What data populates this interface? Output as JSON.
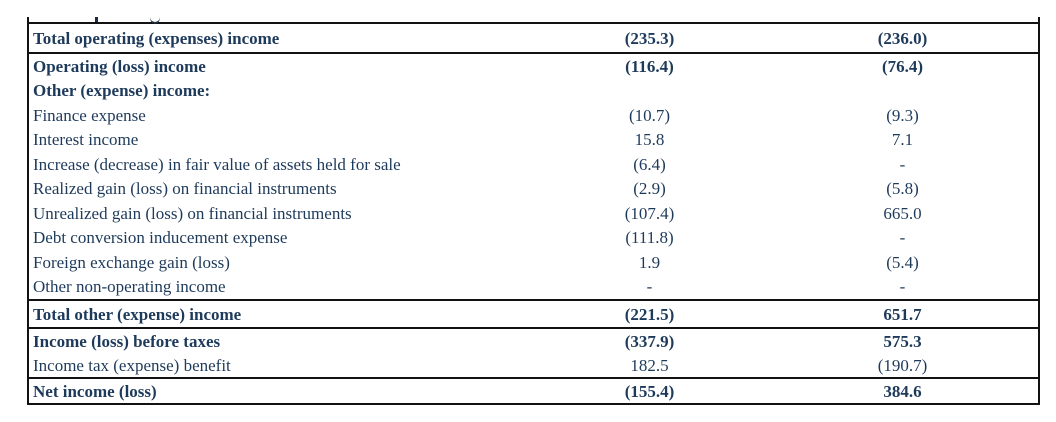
{
  "colors": {
    "text": "#1e3a5a",
    "border": "#121212",
    "background": "#ffffff"
  },
  "table": {
    "description": "income-statement-excerpt",
    "columns": [
      "label",
      "amount_col1",
      "amount_col2"
    ],
    "rows": [
      {
        "label": "Total operating (expenses) income",
        "v1": "(235.3)",
        "v2": "(236.0)",
        "bold": true,
        "rule_below": true
      },
      {
        "label": "Operating (loss) income",
        "v1": "(116.4)",
        "v2": "(76.4)",
        "bold": true,
        "rule_below": false
      },
      {
        "label": "Other (expense) income:",
        "v1": "",
        "v2": "",
        "bold": true,
        "rule_below": false
      },
      {
        "label": "Finance expense",
        "v1": "(10.7)",
        "v2": "(9.3)",
        "bold": false,
        "rule_below": false
      },
      {
        "label": "Interest income",
        "v1": "15.8",
        "v2": "7.1",
        "bold": false,
        "rule_below": false
      },
      {
        "label": "Increase (decrease) in fair value of assets held for sale",
        "v1": "(6.4)",
        "v2": "-",
        "bold": false,
        "rule_below": false
      },
      {
        "label": "Realized gain (loss) on financial instruments",
        "v1": "(2.9)",
        "v2": "(5.8)",
        "bold": false,
        "rule_below": false
      },
      {
        "label": "Unrealized gain (loss) on financial instruments",
        "v1": "(107.4)",
        "v2": "665.0",
        "bold": false,
        "rule_below": false
      },
      {
        "label": "Debt conversion inducement expense",
        "v1": "(111.8)",
        "v2": "-",
        "bold": false,
        "rule_below": false
      },
      {
        "label": "Foreign exchange gain (loss)",
        "v1": "1.9",
        "v2": "(5.4)",
        "bold": false,
        "rule_below": false
      },
      {
        "label": "Other non-operating income",
        "v1": "-",
        "v2": "-",
        "bold": false,
        "rule_below": true
      },
      {
        "label": "Total other (expense) income",
        "v1": "(221.5)",
        "v2": "651.7",
        "bold": true,
        "rule_below": true
      },
      {
        "label": "Income (loss) before taxes",
        "v1": "(337.9)",
        "v2": "575.3",
        "bold": true,
        "rule_below": false
      },
      {
        "label": "Income tax (expense) benefit",
        "v1": "182.5",
        "v2": "(190.7)",
        "bold": false,
        "rule_below": true
      },
      {
        "label": "Net income (loss)",
        "v1": "(155.4)",
        "v2": "384.6",
        "bold": true,
        "rule_below": false
      }
    ]
  }
}
